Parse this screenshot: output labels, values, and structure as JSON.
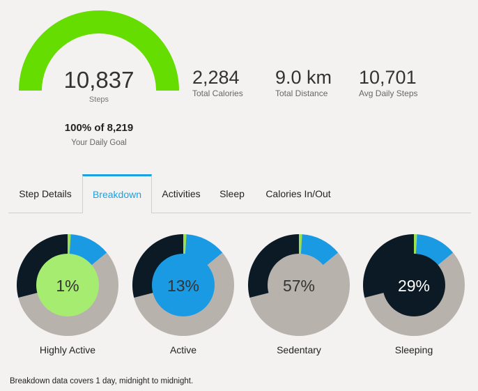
{
  "summary": {
    "steps_value": "10,837",
    "steps_label": "Steps",
    "goal_value": "100% of 8,219",
    "goal_label": "Your Daily Goal",
    "goal_progress": 1.0,
    "gauge_color": "#66dd00",
    "stats": [
      {
        "value": "2,284",
        "label": "Total Calories"
      },
      {
        "value": "9.0 km",
        "label": "Total Distance"
      },
      {
        "value": "10,701",
        "label": "Avg Daily Steps"
      }
    ]
  },
  "tabs": [
    {
      "label": "Step Details",
      "active": false
    },
    {
      "label": "Breakdown",
      "active": true
    },
    {
      "label": "Activities",
      "active": false
    },
    {
      "label": "Sleep",
      "active": false
    },
    {
      "label": "Calories In/Out",
      "active": false
    }
  ],
  "breakdown": {
    "segments": [
      {
        "name": "Highly Active",
        "percent": 1,
        "color": "#99e052"
      },
      {
        "name": "Active",
        "percent": 13,
        "color": "#1b9ae4"
      },
      {
        "name": "Sedentary",
        "percent": 57,
        "color": "#b8b2ad"
      },
      {
        "name": "Sleeping",
        "percent": 29,
        "color": "#0b1a24"
      }
    ],
    "items": [
      {
        "label": "Highly Active",
        "percent_text": "1%",
        "highlight_index": 0,
        "center_color": "#a6ec70"
      },
      {
        "label": "Active",
        "percent_text": "13%",
        "highlight_index": 1,
        "center_color": "#1b9ae4"
      },
      {
        "label": "Sedentary",
        "percent_text": "57%",
        "highlight_index": 2,
        "center_color": "#b8b2ad"
      },
      {
        "label": "Sleeping",
        "percent_text": "29%",
        "highlight_index": 3,
        "center_color": "#0b1a24"
      }
    ]
  },
  "footnote": "Breakdown data covers 1 day, midnight to midnight."
}
